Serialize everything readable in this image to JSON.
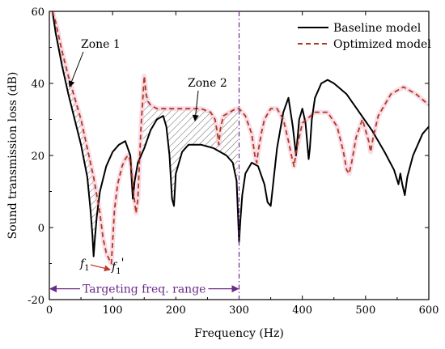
{
  "chart_data": {
    "type": "line",
    "title": "",
    "xlabel": "Frequency (Hz)",
    "ylabel": "Sound transmission loss (dB)",
    "xlim": [
      0,
      600
    ],
    "ylim": [
      -20,
      60
    ],
    "xticks": [
      0,
      100,
      200,
      300,
      400,
      500,
      600
    ],
    "yticks": [
      -20,
      0,
      20,
      40,
      60
    ],
    "grid": false,
    "legend_position": "top-right",
    "series": [
      {
        "name": "Baseline model",
        "color": "#000000",
        "style": "solid",
        "x": [
          5,
          10,
          20,
          30,
          40,
          50,
          60,
          65,
          68,
          70,
          72,
          75,
          80,
          90,
          100,
          110,
          120,
          128,
          132,
          135,
          140,
          150,
          160,
          170,
          180,
          185,
          190,
          194,
          197,
          200,
          210,
          220,
          240,
          260,
          280,
          290,
          296,
          298,
          300,
          302,
          305,
          310,
          320,
          330,
          340,
          345,
          350,
          352,
          355,
          360,
          370,
          378,
          385,
          390,
          395,
          400,
          405,
          410,
          412,
          415,
          420,
          430,
          440,
          450,
          470,
          490,
          510,
          530,
          545,
          552,
          555,
          558,
          562,
          566,
          575,
          590,
          600
        ],
        "y": [
          60,
          54,
          45,
          37,
          30,
          23,
          14,
          5,
          -2,
          -8,
          -3,
          3,
          10,
          17,
          21,
          23,
          24,
          20,
          8,
          13,
          18,
          22,
          27,
          30,
          31,
          28,
          20,
          8,
          6,
          15,
          21,
          23,
          23,
          22,
          20,
          18,
          13,
          5,
          -4,
          2,
          9,
          15,
          18,
          17,
          12,
          7,
          6,
          9,
          14,
          22,
          32,
          36,
          28,
          20,
          30,
          33,
          29,
          19,
          22,
          30,
          36,
          40,
          41,
          40,
          37,
          32,
          27,
          21,
          16,
          12,
          15,
          12,
          9,
          14,
          20,
          26,
          28
        ]
      },
      {
        "name": "Optimized model",
        "color": "#b03a14",
        "style": "dashed",
        "x": [
          5,
          10,
          20,
          30,
          40,
          50,
          60,
          70,
          80,
          85,
          90,
          95,
          98,
          100,
          103,
          108,
          115,
          120,
          124,
          127,
          130,
          133,
          137,
          140,
          145,
          150,
          153,
          156,
          160,
          170,
          180,
          200,
          220,
          240,
          255,
          262,
          266,
          268,
          270,
          275,
          285,
          295,
          300,
          310,
          320,
          325,
          328,
          330,
          335,
          340,
          350,
          360,
          370,
          378,
          384,
          387,
          390,
          400,
          420,
          440,
          455,
          465,
          470,
          474,
          478,
          485,
          495,
          505,
          508,
          512,
          520,
          540,
          560,
          580,
          600
        ],
        "y": [
          60,
          57,
          49,
          42,
          36,
          30,
          22,
          14,
          4,
          -3,
          -7,
          -9,
          -10,
          -4,
          5,
          12,
          17,
          19,
          20,
          19,
          16,
          10,
          4,
          8,
          28,
          42,
          37,
          35,
          34,
          33,
          33,
          33,
          33,
          33,
          32,
          30,
          26,
          23,
          27,
          31,
          32,
          33,
          33,
          31,
          26,
          20,
          18,
          21,
          26,
          30,
          33,
          33,
          30,
          24,
          19,
          17,
          21,
          29,
          32,
          32,
          28,
          21,
          16,
          15,
          18,
          25,
          30,
          24,
          21,
          25,
          31,
          37,
          39,
          37,
          34
        ]
      }
    ],
    "annotations": {
      "zone1": "Zone 1",
      "zone2": "Zone 2",
      "f1": "f",
      "f1_sub": "1",
      "f1p": "f",
      "f1p_sub": "1",
      "f1p_prime": "'",
      "range": "Targeting freq. range",
      "range_x": [
        0,
        300
      ],
      "marker_x": 300
    }
  },
  "colors": {
    "baseline": "#000000",
    "optimized": "#b03a14",
    "range": "#6a2a8a",
    "glow": "#f4c0d8"
  }
}
